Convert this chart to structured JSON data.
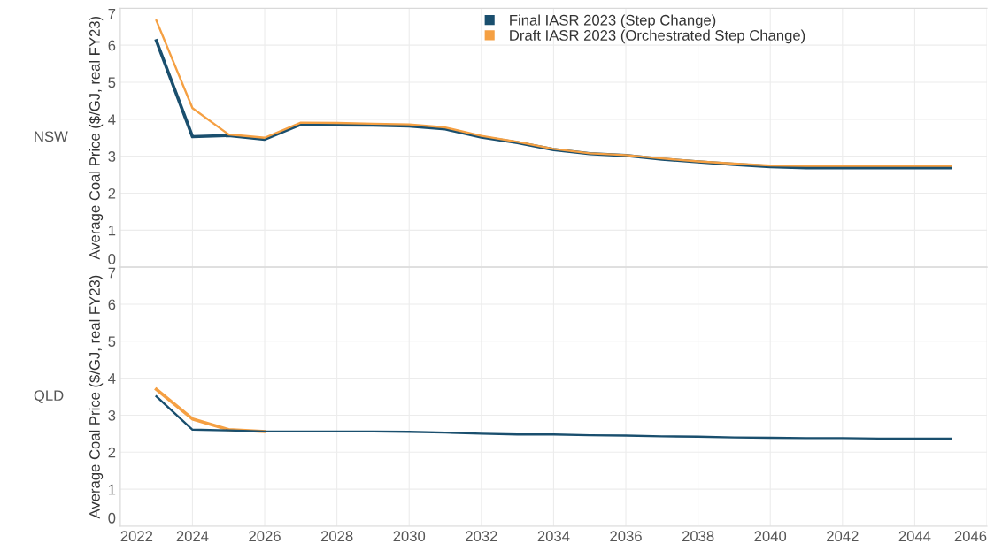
{
  "chart_data": [
    {
      "type": "line",
      "title": "NSW",
      "ylabel": "Average Coal Price ($/GJ, real FY23)",
      "x": [
        2023,
        2024,
        2025,
        2026,
        2027,
        2028,
        2029,
        2030,
        2031,
        2032,
        2033,
        2034,
        2035,
        2036,
        2037,
        2038,
        2039,
        2040,
        2041,
        2042,
        2043,
        2044,
        2045
      ],
      "series": [
        {
          "name": "Final IASR 2023 (Step Change)",
          "color": "#1a4f6e",
          "values": [
            6.12,
            3.53,
            3.56,
            3.46,
            3.86,
            3.85,
            3.84,
            3.82,
            3.74,
            3.52,
            3.37,
            3.18,
            3.07,
            3.02,
            2.92,
            2.85,
            2.78,
            2.72,
            2.69,
            2.69,
            2.69,
            2.69,
            2.69
          ]
        },
        {
          "name": "Draft IASR 2023 (Orchestrated Step Change)",
          "color": "#f5a043",
          "values": [
            6.67,
            4.3,
            3.59,
            3.5,
            3.91,
            3.9,
            3.88,
            3.86,
            3.78,
            3.55,
            3.39,
            3.2,
            3.08,
            3.03,
            2.94,
            2.86,
            2.8,
            2.75,
            2.74,
            2.74,
            2.74,
            2.74,
            2.74
          ]
        }
      ],
      "xlim": [
        2022,
        2046
      ],
      "xticks": [
        2022,
        2024,
        2026,
        2028,
        2030,
        2032,
        2034,
        2036,
        2038,
        2040,
        2042,
        2044,
        2046
      ],
      "ylim": [
        0,
        7
      ],
      "yticks": [
        0,
        1,
        2,
        3,
        4,
        5,
        6,
        7
      ],
      "tick_labels": "y",
      "grid": true,
      "legend": "top"
    },
    {
      "type": "line",
      "title": "QLD",
      "ylabel": "Average Coal Price ($/GJ, real FY23)",
      "x": [
        2023,
        2024,
        2025,
        2026,
        2027,
        2028,
        2029,
        2030,
        2031,
        2032,
        2033,
        2034,
        2035,
        2036,
        2037,
        2038,
        2039,
        2040,
        2041,
        2042,
        2043,
        2044,
        2045
      ],
      "series": [
        {
          "color": "#f5a043",
          "values": [
            3.7,
            2.9,
            2.61,
            2.56,
            null,
            null,
            null,
            null,
            null,
            null,
            null,
            null,
            null,
            null,
            null,
            null,
            null,
            null,
            null,
            null,
            null,
            null,
            null
          ]
        },
        {
          "color": "#1a4f6e",
          "values": [
            3.51,
            2.61,
            2.59,
            2.56,
            2.56,
            2.56,
            2.56,
            2.55,
            2.53,
            2.5,
            2.48,
            2.48,
            2.46,
            2.45,
            2.43,
            2.42,
            2.4,
            2.39,
            2.38,
            2.38,
            2.37,
            2.37,
            2.37
          ]
        }
      ],
      "xlim": [
        2022,
        2046
      ],
      "xticks": [
        2022,
        2024,
        2026,
        2028,
        2030,
        2032,
        2034,
        2036,
        2038,
        2040,
        2042,
        2044,
        2046
      ],
      "ylim": [
        0,
        7
      ],
      "yticks": [
        0,
        1,
        2,
        3,
        4,
        5,
        6,
        7
      ],
      "grid": true
    }
  ]
}
